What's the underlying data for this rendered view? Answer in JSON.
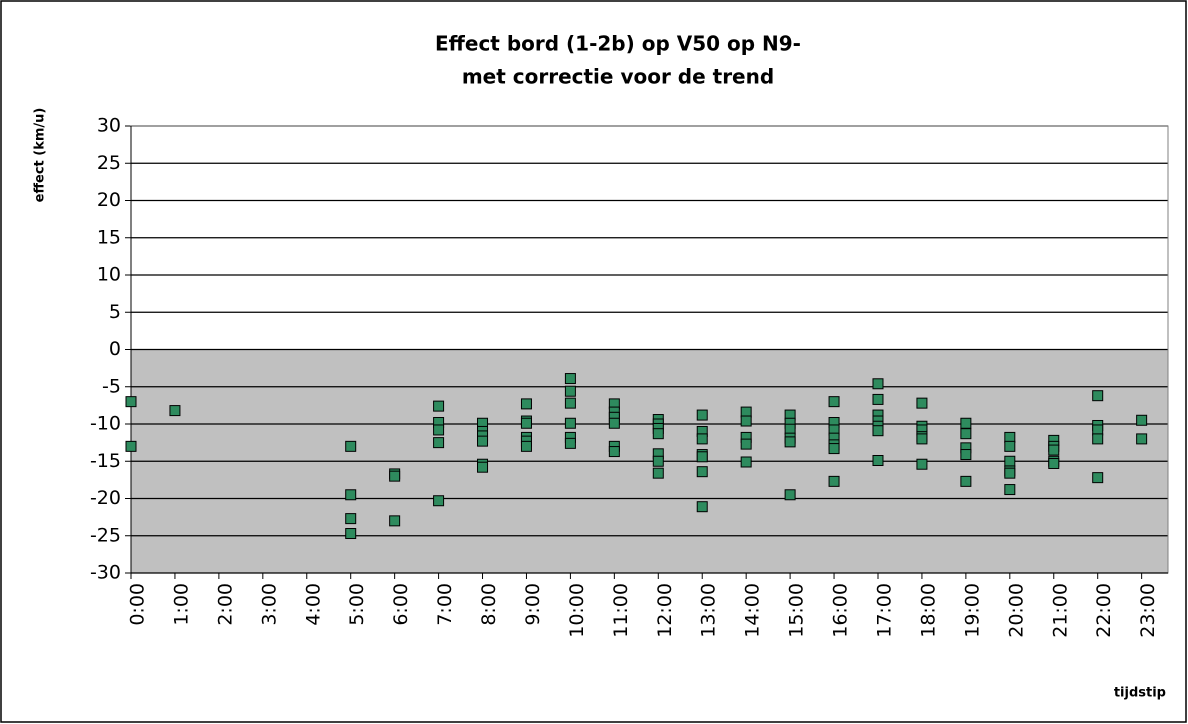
{
  "chart_data": {
    "type": "scatter",
    "title": [
      "Effect bord (1-2b) op V50 op N9-",
      "met correctie voor de trend"
    ],
    "y_label": "effect (km/u)",
    "x_label": "tijdstip",
    "xlim": [
      0,
      23.6
    ],
    "ylim": [
      -30,
      30
    ],
    "shaded_ylim": [
      -30,
      0
    ],
    "grid": true,
    "color": "#2e8b5e",
    "yticks": [
      30,
      25,
      20,
      15,
      10,
      5,
      0,
      -5,
      -10,
      -15,
      -20,
      -25,
      -30
    ],
    "xticks": [
      {
        "value": 0,
        "label": "0:00"
      },
      {
        "value": 1,
        "label": "1:00"
      },
      {
        "value": 2,
        "label": "2:00"
      },
      {
        "value": 3,
        "label": "3:00"
      },
      {
        "value": 4,
        "label": "4:00"
      },
      {
        "value": 5,
        "label": "5:00"
      },
      {
        "value": 6,
        "label": "6:00"
      },
      {
        "value": 7,
        "label": "7:00"
      },
      {
        "value": 8,
        "label": "8:00"
      },
      {
        "value": 9,
        "label": "9:00"
      },
      {
        "value": 10,
        "label": "10:00"
      },
      {
        "value": 11,
        "label": "11:00"
      },
      {
        "value": 12,
        "label": "12:00"
      },
      {
        "value": 13,
        "label": "13:00"
      },
      {
        "value": 14,
        "label": "14:00"
      },
      {
        "value": 15,
        "label": "15:00"
      },
      {
        "value": 16,
        "label": "16:00"
      },
      {
        "value": 17,
        "label": "17:00"
      },
      {
        "value": 18,
        "label": "18:00"
      },
      {
        "value": 19,
        "label": "19:00"
      },
      {
        "value": 20,
        "label": "20:00"
      },
      {
        "value": 21,
        "label": "21:00"
      },
      {
        "value": 22,
        "label": "22:00"
      },
      {
        "value": 23,
        "label": "23:00"
      }
    ],
    "series": [
      {
        "color": "#2e8b5e",
        "x": [
          0,
          0,
          1,
          5,
          5,
          5,
          5,
          6,
          6,
          6,
          7,
          7,
          7,
          7,
          7,
          8,
          8,
          8,
          8,
          8,
          8,
          9,
          9,
          9,
          9,
          9,
          9,
          10,
          10,
          10,
          10,
          10,
          10,
          11,
          11,
          11,
          11,
          11,
          11,
          12,
          12,
          12,
          12,
          12,
          12,
          12,
          13,
          13,
          13,
          13,
          13,
          13,
          13,
          14,
          14,
          14,
          14,
          14,
          15,
          15,
          15,
          15,
          15,
          15,
          16,
          16,
          16,
          16,
          16,
          16,
          16,
          17,
          17,
          17,
          17,
          17,
          17,
          17,
          18,
          18,
          18,
          18,
          18,
          18,
          19,
          19,
          19,
          19,
          19,
          20,
          20,
          20,
          20,
          20,
          20,
          21,
          21,
          21,
          21,
          21,
          22,
          22,
          22,
          22,
          22,
          23,
          23
        ],
        "values": [
          -7,
          -13,
          -8.2,
          -13,
          -19.5,
          -22.7,
          -24.7,
          -16.7,
          -17,
          -23,
          -7.6,
          -9.8,
          -10.8,
          -12.5,
          -20.3,
          -9.9,
          -11,
          -11.6,
          -12.3,
          -15.4,
          -15.8,
          -7.3,
          -9.6,
          -9.9,
          -11.8,
          -12.3,
          -13,
          -3.9,
          -5.6,
          -7.2,
          -9.9,
          -11.8,
          -12.6,
          -7.3,
          -8.4,
          -9.1,
          -9.9,
          -13,
          -13.7,
          -9.4,
          -10,
          -10.6,
          -11.3,
          -14,
          -15,
          -16.6,
          -8.8,
          -11,
          -12,
          -14.1,
          -14.4,
          -16.4,
          -21.1,
          -8.4,
          -9.6,
          -11.8,
          -12.7,
          -15.1,
          -8.8,
          -9.9,
          -10.7,
          -11.9,
          -12.4,
          -19.5,
          -7,
          -9.8,
          -10.8,
          -11.9,
          -12.8,
          -13.3,
          -17.7,
          -4.6,
          -6.7,
          -8.8,
          -9.6,
          -10.3,
          -10.9,
          -14.9,
          -7.2,
          -10.3,
          -10.8,
          -11.7,
          -12,
          -15.4,
          -9.9,
          -11.3,
          -13.2,
          -14.1,
          -17.7,
          -11.8,
          -13,
          -15,
          -16.3,
          -16.6,
          -18.8,
          -12.2,
          -13,
          -13.5,
          -15,
          -15.3,
          -6.2,
          -10.2,
          -10.8,
          -12,
          -17.2,
          -9.5,
          -12
        ]
      }
    ]
  }
}
